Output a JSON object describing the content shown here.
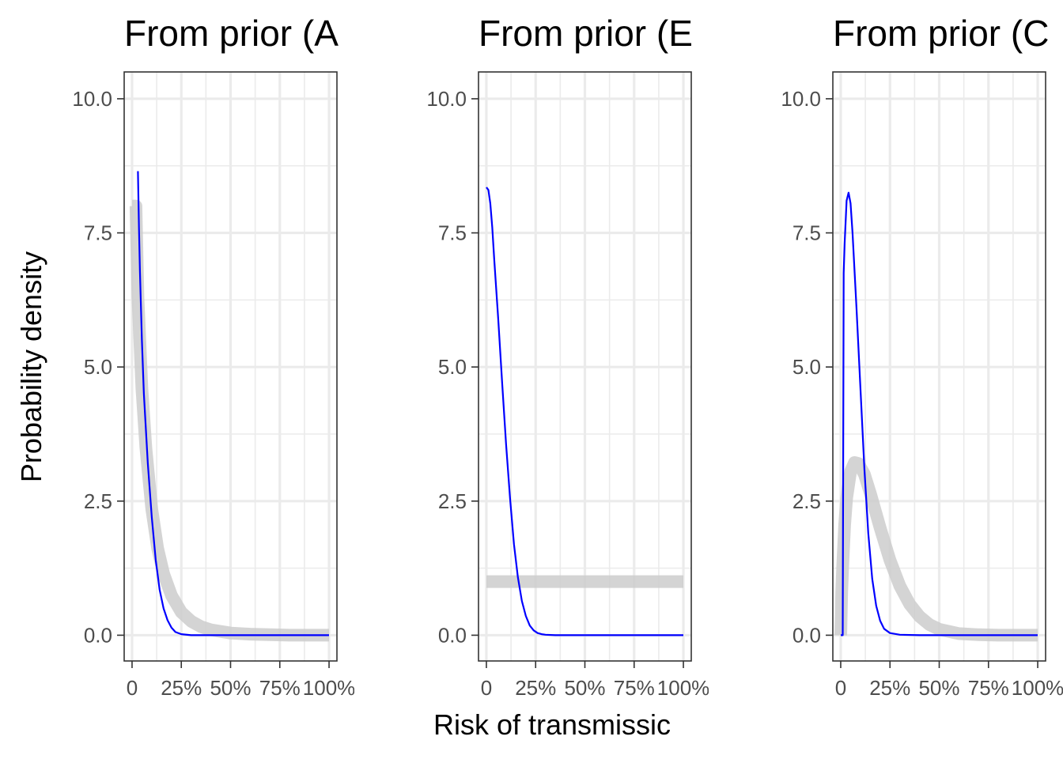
{
  "chart_data": [
    {
      "type": "line",
      "title": "From prior (A",
      "xlabel": "",
      "ylabel": "Probability density",
      "xlim": [
        -0.04,
        1.04
      ],
      "ylim": [
        -0.48,
        10.5
      ],
      "yticks": [
        0,
        2.5,
        5,
        7.5,
        10
      ],
      "ytick_labels": [
        "0.0",
        "2.5",
        "5.0",
        "7.5",
        "10.0"
      ],
      "xticks": [
        0,
        0.25,
        0.5,
        0.75,
        1
      ],
      "xtick_labels": [
        "0",
        "25%",
        "50%",
        "75%",
        "100%"
      ],
      "grid": true,
      "series": [
        {
          "color": "#cccccc",
          "x": [
            0.0,
            0.02,
            0.03,
            0.05,
            0.07,
            0.1,
            0.13,
            0.16,
            0.2,
            0.25,
            0.3,
            0.35,
            0.4,
            0.5,
            0.6,
            0.7,
            0.8,
            0.9,
            1.0
          ],
          "y": [
            8.0,
            8.0,
            6.3,
            4.6,
            3.5,
            2.35,
            1.62,
            1.15,
            0.74,
            0.43,
            0.26,
            0.16,
            0.1,
            0.04,
            0.02,
            0.01,
            0.0,
            0.0,
            0.0
          ]
        },
        {
          "color": "#0000ff",
          "x": [
            0.03,
            0.035,
            0.04,
            0.05,
            0.06,
            0.08,
            0.1,
            0.12,
            0.14,
            0.16,
            0.18,
            0.2,
            0.22,
            0.25,
            0.3,
            0.4,
            0.5,
            0.7,
            1.0
          ],
          "y": [
            8.65,
            7.6,
            6.8,
            5.5,
            4.5,
            3.2,
            2.2,
            1.4,
            0.85,
            0.5,
            0.28,
            0.14,
            0.06,
            0.02,
            0.0,
            0.0,
            0.0,
            0.0,
            0.0
          ]
        }
      ]
    },
    {
      "type": "line",
      "title": "From prior (E",
      "xlabel": "Risk of transmissic",
      "ylabel": "",
      "xlim": [
        -0.04,
        1.04
      ],
      "ylim": [
        -0.48,
        10.5
      ],
      "yticks": [
        0,
        2.5,
        5,
        7.5,
        10
      ],
      "ytick_labels": [
        "0.0",
        "2.5",
        "5.0",
        "7.5",
        "10.0"
      ],
      "xticks": [
        0,
        0.25,
        0.5,
        0.75,
        1
      ],
      "xtick_labels": [
        "0",
        "25%",
        "50%",
        "75%",
        "100%"
      ],
      "grid": true,
      "series": [
        {
          "color": "#cccccc",
          "x": [
            0.0,
            1.0
          ],
          "y": [
            1.0,
            1.0
          ]
        },
        {
          "color": "#0000ff",
          "x": [
            0.0,
            0.01,
            0.02,
            0.03,
            0.04,
            0.06,
            0.08,
            0.1,
            0.12,
            0.14,
            0.16,
            0.18,
            0.2,
            0.22,
            0.24,
            0.26,
            0.28,
            0.3,
            0.35,
            0.4,
            0.5,
            0.7,
            1.0
          ],
          "y": [
            8.35,
            8.3,
            8.05,
            7.6,
            7.0,
            5.9,
            4.7,
            3.55,
            2.55,
            1.7,
            1.08,
            0.64,
            0.36,
            0.18,
            0.09,
            0.04,
            0.02,
            0.01,
            0.0,
            0.0,
            0.0,
            0.0,
            0.0
          ]
        }
      ]
    },
    {
      "type": "line",
      "title": "From prior (C",
      "xlabel": "",
      "ylabel": "",
      "xlim": [
        -0.04,
        1.04
      ],
      "ylim": [
        -0.48,
        10.5
      ],
      "yticks": [
        0,
        2.5,
        5,
        7.5,
        10
      ],
      "ytick_labels": [
        "0.0",
        "2.5",
        "5.0",
        "7.5",
        "10.0"
      ],
      "xticks": [
        0,
        0.25,
        0.5,
        0.75,
        1
      ],
      "xtick_labels": [
        "0",
        "25%",
        "50%",
        "75%",
        "100%"
      ],
      "grid": true,
      "series": [
        {
          "color": "#cccccc",
          "x": [
            0.0,
            0.005,
            0.01,
            0.02,
            0.03,
            0.05,
            0.07,
            0.09,
            0.12,
            0.15,
            0.2,
            0.25,
            0.3,
            0.35,
            0.4,
            0.45,
            0.5,
            0.6,
            0.7,
            0.8,
            1.0
          ],
          "y": [
            0.0,
            0.8,
            1.3,
            2.05,
            2.55,
            3.05,
            3.22,
            3.2,
            3.0,
            2.65,
            2.0,
            1.4,
            0.92,
            0.58,
            0.35,
            0.2,
            0.11,
            0.03,
            0.01,
            0.0,
            0.0
          ]
        },
        {
          "color": "#0000ff",
          "x": [
            0.0,
            0.01,
            0.015,
            0.02,
            0.03,
            0.04,
            0.05,
            0.06,
            0.08,
            0.1,
            0.12,
            0.14,
            0.16,
            0.18,
            0.2,
            0.22,
            0.25,
            0.3,
            0.4,
            0.6,
            1.0
          ],
          "y": [
            0.0,
            0.0,
            6.75,
            7.3,
            8.1,
            8.25,
            8.05,
            7.5,
            6.1,
            4.6,
            3.1,
            1.9,
            1.05,
            0.55,
            0.27,
            0.12,
            0.04,
            0.01,
            0.0,
            0.0,
            0.0
          ]
        }
      ]
    }
  ]
}
